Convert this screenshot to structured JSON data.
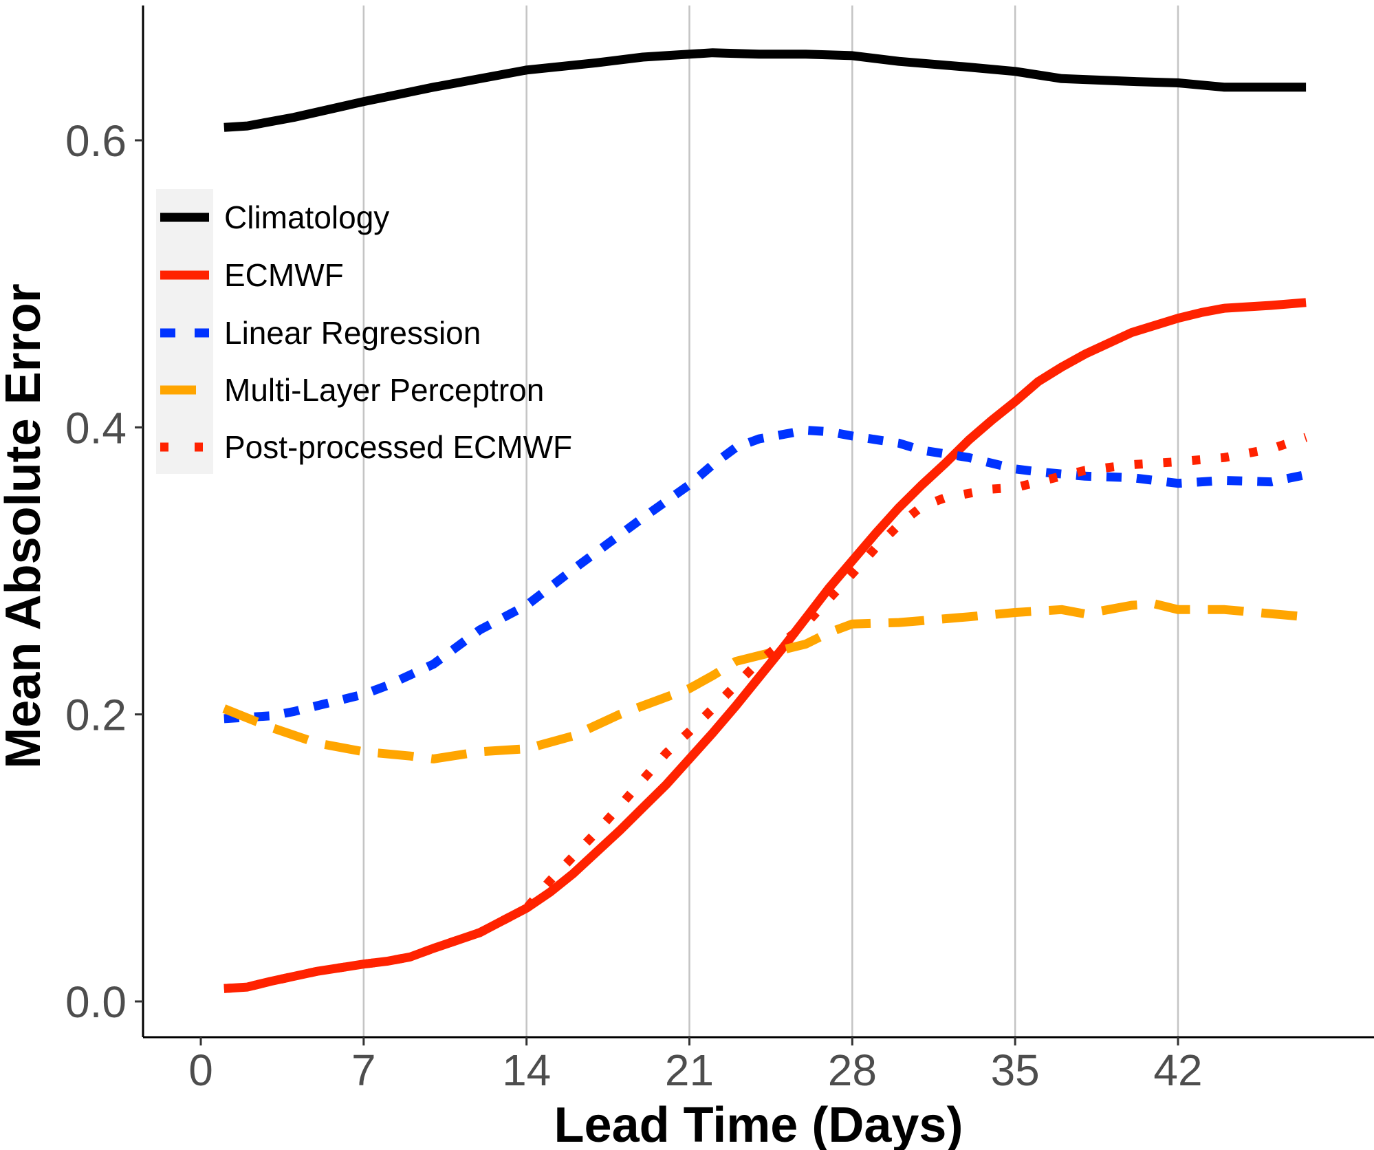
{
  "chart_data": {
    "type": "line",
    "title": "",
    "xlabel": "Lead Time (Days)",
    "ylabel": "Mean Absolute Error",
    "xlim": [
      0,
      48
    ],
    "ylim": [
      0,
      0.66
    ],
    "x_ticks": [
      0,
      7,
      14,
      21,
      28,
      35,
      42
    ],
    "x_tick_labels": [
      "0",
      "7",
      "14",
      "21",
      "28",
      "35",
      "42"
    ],
    "y_ticks": [
      0.0,
      0.2,
      0.4,
      0.6
    ],
    "y_tick_labels": [
      "0.0",
      "0.2",
      "0.4",
      "0.6"
    ],
    "grid": "vertical major gridlines",
    "legend_position": "top-left",
    "series": [
      {
        "name": "Climatology",
        "color": "#000000",
        "dash": "solid",
        "x": [
          1,
          2,
          4,
          7,
          10,
          14,
          17,
          19,
          21,
          22,
          24,
          26,
          28,
          30,
          33,
          35,
          37,
          40,
          42,
          44,
          47.5
        ],
        "y": [
          0.609,
          0.61,
          0.616,
          0.627,
          0.637,
          0.649,
          0.654,
          0.658,
          0.66,
          0.661,
          0.66,
          0.66,
          0.659,
          0.655,
          0.651,
          0.648,
          0.643,
          0.641,
          0.64,
          0.637,
          0.637
        ]
      },
      {
        "name": "ECMWF",
        "color": "#ff2200",
        "dash": "solid",
        "x": [
          1,
          2,
          3,
          5,
          7,
          8,
          9,
          10,
          12,
          14,
          15,
          16,
          18,
          19,
          20,
          21,
          22,
          23,
          24,
          25,
          26,
          27,
          28,
          29,
          30,
          31,
          32,
          33,
          34,
          35,
          36,
          37,
          38,
          40,
          42,
          43,
          44,
          46,
          47.5
        ],
        "y": [
          0.009,
          0.01,
          0.014,
          0.021,
          0.026,
          0.028,
          0.031,
          0.037,
          0.048,
          0.065,
          0.076,
          0.089,
          0.119,
          0.135,
          0.151,
          0.169,
          0.187,
          0.206,
          0.226,
          0.246,
          0.267,
          0.288,
          0.307,
          0.326,
          0.344,
          0.36,
          0.375,
          0.391,
          0.405,
          0.418,
          0.432,
          0.442,
          0.451,
          0.466,
          0.476,
          0.48,
          0.483,
          0.485,
          0.487
        ]
      },
      {
        "name": "Linear Regression",
        "color": "#0033ff",
        "dash": "dashed",
        "x": [
          1,
          3,
          4,
          5,
          7,
          8,
          10,
          12,
          14,
          16,
          18,
          19,
          21,
          22,
          23,
          24,
          25,
          26,
          27,
          28,
          30,
          31,
          33,
          35,
          36,
          38,
          40,
          42,
          44,
          46,
          47.5
        ],
        "y": [
          0.197,
          0.199,
          0.202,
          0.206,
          0.214,
          0.22,
          0.235,
          0.259,
          0.276,
          0.301,
          0.325,
          0.337,
          0.36,
          0.374,
          0.386,
          0.392,
          0.395,
          0.398,
          0.397,
          0.394,
          0.389,
          0.384,
          0.379,
          0.371,
          0.369,
          0.366,
          0.365,
          0.361,
          0.363,
          0.362,
          0.367
        ]
      },
      {
        "name": "Multi-Layer Perceptron",
        "color": "#ffa500",
        "dash": "longdash",
        "x": [
          1,
          3,
          5,
          7,
          9,
          10,
          12,
          14,
          16,
          18,
          19,
          21,
          22,
          23,
          25,
          26,
          27,
          28,
          30,
          33,
          35,
          37,
          38,
          40,
          41,
          42,
          44,
          47.5
        ],
        "y": [
          0.204,
          0.191,
          0.18,
          0.174,
          0.171,
          0.169,
          0.174,
          0.176,
          0.185,
          0.2,
          0.206,
          0.218,
          0.227,
          0.237,
          0.245,
          0.249,
          0.257,
          0.263,
          0.264,
          0.268,
          0.271,
          0.273,
          0.27,
          0.276,
          0.277,
          0.273,
          0.273,
          0.268
        ]
      },
      {
        "name": "Post-processed ECMWF",
        "color": "#ff2200",
        "dash": "dotted",
        "x": [
          1,
          2,
          3,
          5,
          7,
          8,
          9,
          10,
          12,
          14,
          15,
          17,
          18,
          20,
          21,
          22,
          24,
          26,
          28,
          29,
          30,
          31,
          32,
          34,
          35,
          36,
          38,
          40,
          42,
          44,
          46,
          47.5
        ],
        "y": [
          0.009,
          0.01,
          0.014,
          0.021,
          0.026,
          0.028,
          0.031,
          0.037,
          0.048,
          0.065,
          0.084,
          0.118,
          0.136,
          0.173,
          0.188,
          0.204,
          0.237,
          0.263,
          0.298,
          0.316,
          0.332,
          0.345,
          0.351,
          0.357,
          0.358,
          0.362,
          0.37,
          0.374,
          0.376,
          0.379,
          0.385,
          0.393
        ]
      }
    ]
  }
}
